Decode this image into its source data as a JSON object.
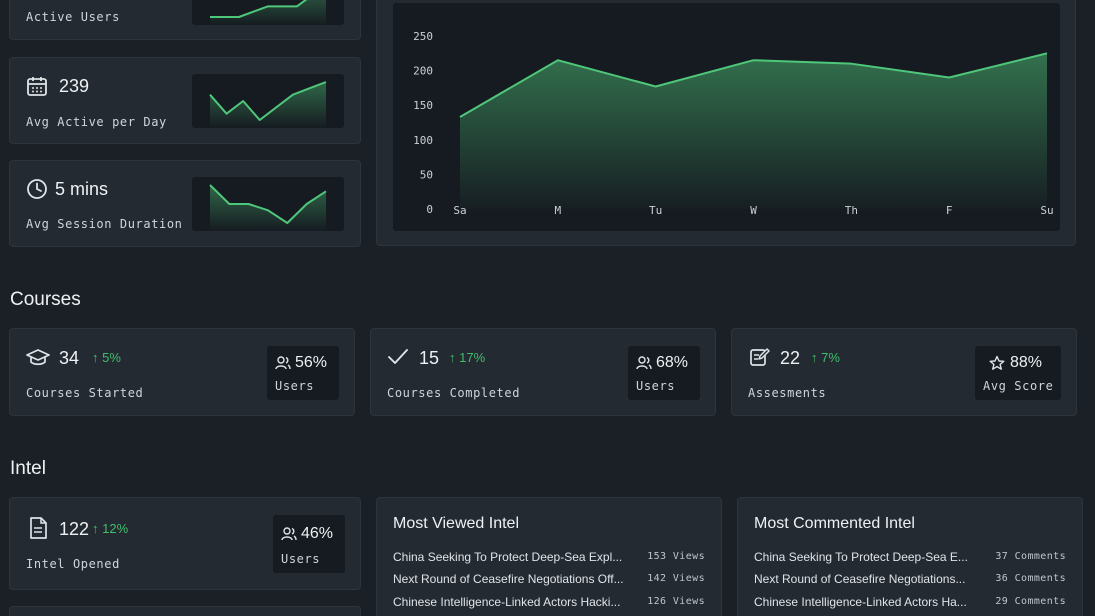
{
  "top_stats": [
    {
      "label": "Active Users",
      "value": ""
    },
    {
      "label": "Avg Active per Day",
      "value": "239",
      "icon": "calendar-icon"
    },
    {
      "label": "Avg Session Duration",
      "value": "5 mins",
      "icon": "clock-icon"
    }
  ],
  "sparklines": {
    "active_users": [
      0,
      0,
      1,
      1,
      3
    ],
    "avg_active": [
      5,
      2,
      4,
      1,
      3,
      5,
      6,
      7
    ],
    "avg_session": [
      6,
      3,
      3,
      2,
      0,
      3,
      5
    ]
  },
  "chart_data": {
    "type": "area",
    "categories": [
      "Sa",
      "M",
      "Tu",
      "W",
      "Th",
      "F",
      "Su"
    ],
    "values": [
      133,
      215,
      177,
      215,
      210,
      190,
      225
    ],
    "ylim": [
      0,
      250
    ],
    "yticks": [
      "0",
      "50",
      "100",
      "150",
      "200",
      "250"
    ],
    "line_color": "#4fc77a",
    "grid": false
  },
  "courses": {
    "title": "Courses",
    "cards": [
      {
        "value": "34",
        "trend": "5%",
        "label": "Courses Started",
        "pill_value": "56%",
        "pill_label": "Users",
        "icon": "graduation-cap-icon",
        "pill_icon": "users-icon"
      },
      {
        "value": "15",
        "trend": "17%",
        "label": "Courses Completed",
        "pill_value": "68%",
        "pill_label": "Users",
        "icon": "check-icon",
        "pill_icon": "users-icon"
      },
      {
        "value": "22",
        "trend": "7%",
        "label": "Assesments",
        "pill_value": "88%",
        "pill_label": "Avg Score",
        "icon": "edit-note-icon",
        "pill_icon": "star-icon"
      }
    ]
  },
  "intel": {
    "title": "Intel",
    "opened": {
      "value": "122",
      "trend": "12%",
      "label": "Intel Opened",
      "pill_value": "46%",
      "pill_label": "Users",
      "icon": "document-icon",
      "pill_icon": "users-icon"
    },
    "most_viewed": {
      "title": "Most Viewed Intel",
      "items": [
        {
          "title": "China Seeking To Protect Deep-Sea Expl...",
          "count": "153 Views"
        },
        {
          "title": "Next Round of Ceasefire Negotiations Off...",
          "count": "142 Views"
        },
        {
          "title": "Chinese Intelligence-Linked Actors Hacki...",
          "count": "126 Views"
        }
      ]
    },
    "most_commented": {
      "title": "Most Commented Intel",
      "items": [
        {
          "title": "China Seeking To Protect Deep-Sea E...",
          "count": "37 Comments"
        },
        {
          "title": "Next Round of Ceasefire Negotiations...",
          "count": "36 Comments"
        },
        {
          "title": "Chinese Intelligence-Linked Actors Ha...",
          "count": "29 Comments"
        }
      ]
    }
  },
  "colors": {
    "accent": "#4fc77a",
    "trend_up": "#3fbf6a",
    "card": "#232a32",
    "background": "#1b2026"
  }
}
